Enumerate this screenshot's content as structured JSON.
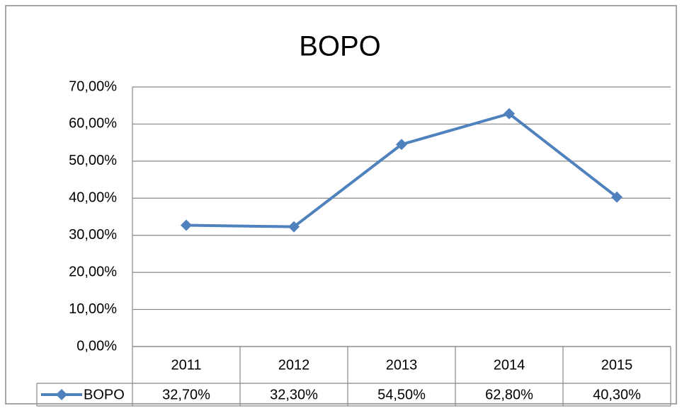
{
  "chart_data": {
    "type": "line",
    "title": "BOPO",
    "categories": [
      "2011",
      "2012",
      "2013",
      "2014",
      "2015"
    ],
    "series": [
      {
        "name": "BOPO",
        "color": "#4f81bd",
        "values": [
          32.7,
          32.3,
          54.5,
          62.8,
          40.3
        ],
        "value_labels": [
          "32,70%",
          "32,30%",
          "54,50%",
          "62,80%",
          "40,30%"
        ]
      }
    ],
    "ylim": [
      0,
      70
    ],
    "yticks": [
      {
        "value": 0,
        "label": "0,00%"
      },
      {
        "value": 10,
        "label": "10,00%"
      },
      {
        "value": 20,
        "label": "20,00%"
      },
      {
        "value": 30,
        "label": "30,00%"
      },
      {
        "value": 40,
        "label": "40,00%"
      },
      {
        "value": 50,
        "label": "50,00%"
      },
      {
        "value": 60,
        "label": "60,00%"
      },
      {
        "value": 70,
        "label": "70,00%"
      }
    ],
    "grid": true,
    "data_table": true
  }
}
